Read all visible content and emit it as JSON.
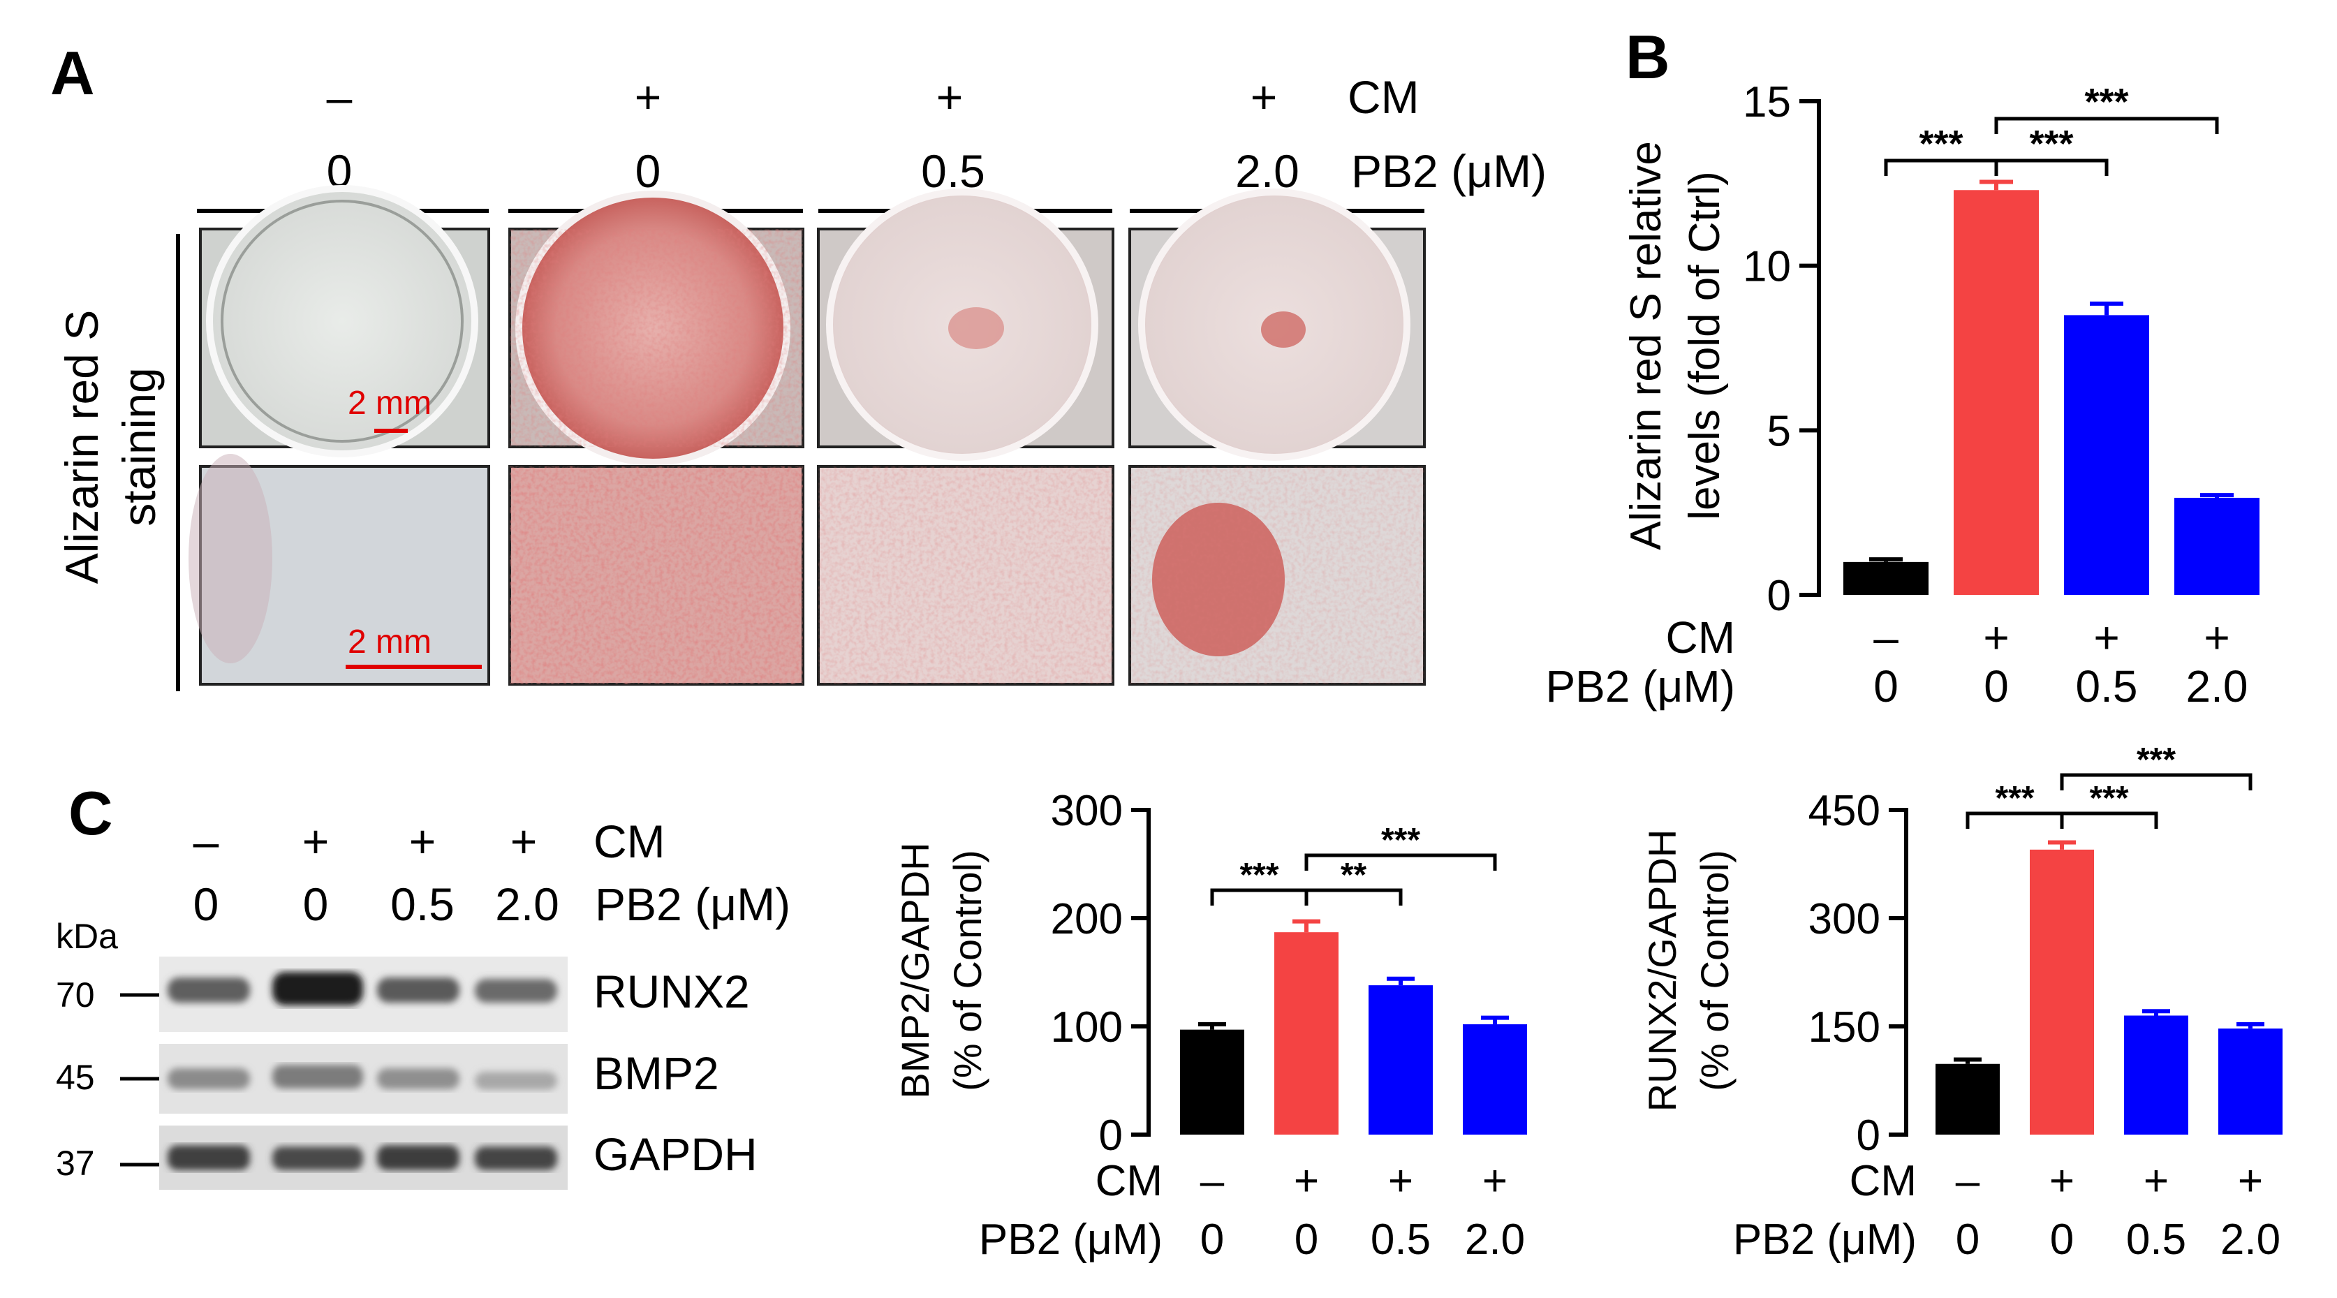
{
  "panel_letters": {
    "a": "A",
    "b": "B",
    "c": "C"
  },
  "panel_a": {
    "cm_label": "CM",
    "pb2_label": "PB2 (μM)",
    "cm_values": [
      "–",
      "+",
      "+",
      "+"
    ],
    "pb2_values": [
      "0",
      "0",
      "0.5",
      "2.0"
    ],
    "row_label_1": "Alizarin red S",
    "row_label_2": "staining",
    "scale_bar_top": "2 mm",
    "scale_bar_bottom": "2 mm"
  },
  "panel_c_blot": {
    "cm_label": "CM",
    "pb2_label": "PB2 (μM)",
    "cm_values": [
      "–",
      "+",
      "+",
      "+"
    ],
    "pb2_values": [
      "0",
      "0",
      "0.5",
      "2.0"
    ],
    "kda_label": "kDa",
    "markers": [
      "70",
      "45",
      "37"
    ],
    "proteins": [
      "RUNX2",
      "BMP2",
      "GAPDH"
    ]
  },
  "colors": {
    "ctrl": "#000000",
    "cm": "#f44343",
    "pb2": "#0000ff",
    "stain": "#c5403f"
  },
  "chart_data": [
    {
      "id": "B",
      "type": "bar",
      "categories": [
        "–/0",
        "+/0",
        "+/0.5",
        "+/2.0"
      ],
      "cm_row": [
        "–",
        "+",
        "+",
        "+"
      ],
      "pb2_row": [
        "0",
        "0",
        "0.5",
        "2.0"
      ],
      "row_labels": {
        "cm": "CM",
        "pb2": "PB2 (μM)"
      },
      "values": [
        1.0,
        12.3,
        8.5,
        2.95
      ],
      "errors": [
        0.08,
        0.25,
        0.35,
        0.08
      ],
      "bar_colors": [
        "#000000",
        "#f44343",
        "#0000ff",
        "#0000ff"
      ],
      "ylabel_lines": [
        "Alizarin red S relative",
        "levels (fold of Ctrl)"
      ],
      "ylim": [
        0,
        15
      ],
      "yticks": [
        "0",
        "5",
        "10",
        "15"
      ],
      "significance": [
        {
          "from": 0,
          "to": 1,
          "label": "***"
        },
        {
          "from": 1,
          "to": 2,
          "label": "***"
        },
        {
          "from": 1,
          "to": 3,
          "label": "***"
        }
      ]
    },
    {
      "id": "C-BMP2",
      "type": "bar",
      "categories": [
        "–/0",
        "+/0",
        "+/0.5",
        "+/2.0"
      ],
      "cm_row": [
        "–",
        "+",
        "+",
        "+"
      ],
      "pb2_row": [
        "0",
        "0",
        "0.5",
        "2.0"
      ],
      "row_labels": {
        "cm": "CM",
        "pb2": "PB2 (μM)"
      },
      "values": [
        97,
        187,
        138,
        102
      ],
      "errors": [
        5,
        10,
        6,
        6
      ],
      "bar_colors": [
        "#000000",
        "#f44343",
        "#0000ff",
        "#0000ff"
      ],
      "ylabel_lines": [
        "BMP2/GAPDH",
        "(% of Control)"
      ],
      "ylim": [
        0,
        300
      ],
      "yticks": [
        "0",
        "100",
        "200",
        "300"
      ],
      "significance": [
        {
          "from": 0,
          "to": 1,
          "label": "***"
        },
        {
          "from": 1,
          "to": 2,
          "label": "**"
        },
        {
          "from": 1,
          "to": 3,
          "label": "***"
        }
      ]
    },
    {
      "id": "C-RUNX2",
      "type": "bar",
      "categories": [
        "–/0",
        "+/0",
        "+/0.5",
        "+/2.0"
      ],
      "cm_row": [
        "–",
        "+",
        "+",
        "+"
      ],
      "pb2_row": [
        "0",
        "0",
        "0.5",
        "2.0"
      ],
      "row_labels": {
        "cm": "CM",
        "pb2": "PB2 (μM)"
      },
      "values": [
        98,
        395,
        165,
        147
      ],
      "errors": [
        6,
        10,
        6,
        6
      ],
      "bar_colors": [
        "#000000",
        "#f44343",
        "#0000ff",
        "#0000ff"
      ],
      "ylabel_lines": [
        "RUNX2/GAPDH",
        "(% of Control)"
      ],
      "ylim": [
        0,
        450
      ],
      "yticks": [
        "0",
        "150",
        "300",
        "450"
      ],
      "significance": [
        {
          "from": 0,
          "to": 1,
          "label": "***"
        },
        {
          "from": 1,
          "to": 2,
          "label": "***"
        },
        {
          "from": 1,
          "to": 3,
          "label": "***"
        }
      ]
    }
  ]
}
